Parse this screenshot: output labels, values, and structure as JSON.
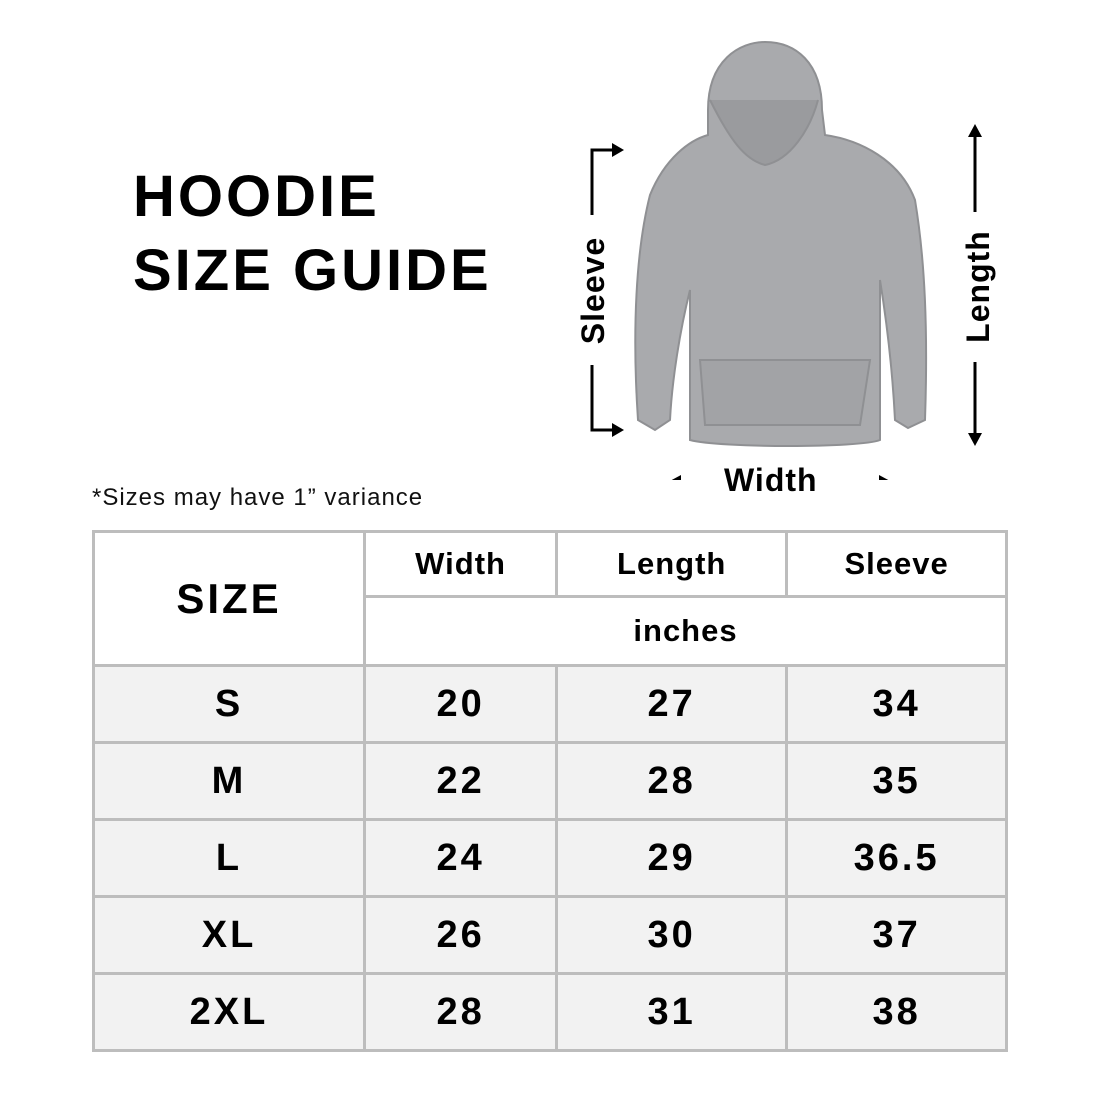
{
  "title": {
    "line1": "HOODIE",
    "line2": "SIZE GUIDE"
  },
  "diagram": {
    "sleeve_label": "Sleeve",
    "length_label": "Length",
    "width_label": "Width"
  },
  "note": "*Sizes may have 1” variance",
  "table": {
    "size_header": "SIZE",
    "columns": [
      "Width",
      "Length",
      "Sleeve"
    ],
    "unit": "inches",
    "rows": [
      {
        "size": "S",
        "width": "20",
        "length": "27",
        "sleeve": "34"
      },
      {
        "size": "M",
        "width": "22",
        "length": "28",
        "sleeve": "35"
      },
      {
        "size": "L",
        "width": "24",
        "length": "29",
        "sleeve": "36.5"
      },
      {
        "size": "XL",
        "width": "26",
        "length": "30",
        "sleeve": "37"
      },
      {
        "size": "2XL",
        "width": "28",
        "length": "31",
        "sleeve": "38"
      }
    ]
  },
  "colors": {
    "border": "#bdbdbd",
    "row_bg": "#f2f2f2",
    "hoodie": "#a9aaad"
  }
}
